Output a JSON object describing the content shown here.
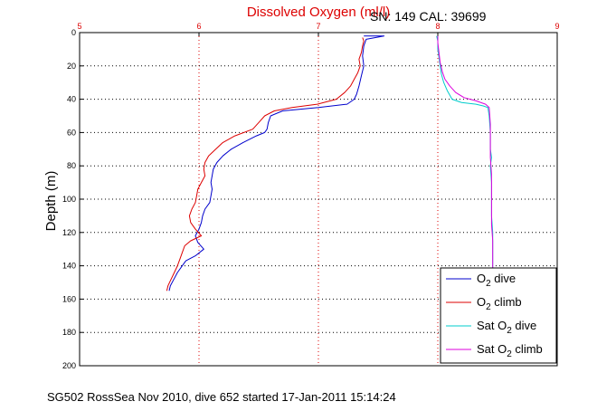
{
  "chart_data": {
    "type": "line",
    "title": "Dissolved Oxygen (ml/l)",
    "subtitle": "SN: 149  CAL: 39699",
    "ylabel": "Depth (m)",
    "footer": "SG502 RossSea Nov 2010, dive 652 started 17-Jan-2011 15:14:24",
    "xlim": [
      5,
      9
    ],
    "ylim": [
      0,
      200
    ],
    "y_inverted": true,
    "x_axis_position": "top",
    "grid": true,
    "xticks": [
      5,
      6,
      7,
      8,
      9
    ],
    "yticks": [
      0,
      20,
      40,
      60,
      80,
      100,
      120,
      140,
      160,
      180,
      200
    ],
    "legend_position": "bottom-right",
    "series": [
      {
        "name": "O2 dive",
        "legend_main": "O",
        "legend_sub": "2",
        "legend_rest": " dive",
        "color": "#0000cc",
        "points": [
          [
            7.38,
            2
          ],
          [
            7.55,
            2
          ],
          [
            7.4,
            4
          ],
          [
            7.38,
            8
          ],
          [
            7.37,
            14
          ],
          [
            7.38,
            20
          ],
          [
            7.36,
            26
          ],
          [
            7.34,
            32
          ],
          [
            7.32,
            37
          ],
          [
            7.3,
            40
          ],
          [
            7.24,
            43
          ],
          [
            7.0,
            45
          ],
          [
            6.7,
            47
          ],
          [
            6.6,
            50
          ],
          [
            6.58,
            54
          ],
          [
            6.57,
            58
          ],
          [
            6.55,
            60
          ],
          [
            6.48,
            62
          ],
          [
            6.37,
            66
          ],
          [
            6.27,
            70
          ],
          [
            6.2,
            74
          ],
          [
            6.15,
            78
          ],
          [
            6.12,
            82
          ],
          [
            6.11,
            86
          ],
          [
            6.1,
            90
          ],
          [
            6.11,
            94
          ],
          [
            6.1,
            98
          ],
          [
            6.09,
            102
          ],
          [
            6.05,
            106
          ],
          [
            6.03,
            110
          ],
          [
            6.02,
            114
          ],
          [
            6.0,
            118
          ],
          [
            5.97,
            122
          ],
          [
            5.99,
            126
          ],
          [
            6.04,
            130
          ],
          [
            5.97,
            134
          ],
          [
            5.89,
            137
          ],
          [
            5.86,
            140
          ],
          [
            5.82,
            144
          ],
          [
            5.79,
            148
          ],
          [
            5.76,
            152
          ],
          [
            5.75,
            155
          ]
        ]
      },
      {
        "name": "O2 climb",
        "legend_main": "O",
        "legend_sub": "2",
        "legend_rest": " climb",
        "color": "#dd0000",
        "points": [
          [
            5.73,
            155
          ],
          [
            5.74,
            152
          ],
          [
            5.76,
            149
          ],
          [
            5.78,
            146
          ],
          [
            5.8,
            143
          ],
          [
            5.82,
            140
          ],
          [
            5.84,
            136
          ],
          [
            5.86,
            132
          ],
          [
            5.88,
            128
          ],
          [
            5.93,
            125
          ],
          [
            6.02,
            122
          ],
          [
            5.97,
            118
          ],
          [
            5.93,
            114
          ],
          [
            5.92,
            110
          ],
          [
            5.94,
            106
          ],
          [
            5.97,
            102
          ],
          [
            5.98,
            98
          ],
          [
            5.99,
            94
          ],
          [
            6.02,
            90
          ],
          [
            6.05,
            86
          ],
          [
            6.04,
            82
          ],
          [
            6.05,
            78
          ],
          [
            6.08,
            74
          ],
          [
            6.14,
            70
          ],
          [
            6.2,
            66
          ],
          [
            6.3,
            62
          ],
          [
            6.45,
            58
          ],
          [
            6.5,
            54
          ],
          [
            6.55,
            50
          ],
          [
            6.63,
            47
          ],
          [
            6.78,
            45
          ],
          [
            6.99,
            43
          ],
          [
            7.15,
            40
          ],
          [
            7.22,
            36
          ],
          [
            7.27,
            32
          ],
          [
            7.3,
            28
          ],
          [
            7.33,
            24
          ],
          [
            7.35,
            20
          ],
          [
            7.34,
            16
          ],
          [
            7.36,
            12
          ],
          [
            7.37,
            8
          ],
          [
            7.38,
            5
          ],
          [
            7.37,
            3
          ]
        ]
      },
      {
        "name": "Sat O2 dive",
        "legend_main": "Sat O",
        "legend_sub": "2",
        "legend_rest": " dive",
        "color": "#00cccc",
        "points": [
          [
            7.99,
            2
          ],
          [
            8.0,
            5
          ],
          [
            8.0,
            10
          ],
          [
            8.01,
            15
          ],
          [
            8.02,
            20
          ],
          [
            8.03,
            25
          ],
          [
            8.05,
            30
          ],
          [
            8.08,
            35
          ],
          [
            8.12,
            40
          ],
          [
            8.2,
            42
          ],
          [
            8.32,
            43
          ],
          [
            8.38,
            44
          ],
          [
            8.42,
            45
          ],
          [
            8.43,
            50
          ],
          [
            8.44,
            60
          ],
          [
            8.44,
            70
          ],
          [
            8.45,
            75
          ],
          [
            8.44,
            80
          ],
          [
            8.45,
            90
          ],
          [
            8.45,
            100
          ],
          [
            8.45,
            110
          ],
          [
            8.46,
            120
          ],
          [
            8.46,
            130
          ],
          [
            8.46,
            140
          ],
          [
            8.46,
            144
          ]
        ]
      },
      {
        "name": "Sat O2 climb",
        "legend_main": "Sat O",
        "legend_sub": "2",
        "legend_rest": " climb",
        "color": "#dd00dd",
        "points": [
          [
            8.46,
            144
          ],
          [
            8.46,
            135
          ],
          [
            8.46,
            125
          ],
          [
            8.45,
            115
          ],
          [
            8.45,
            105
          ],
          [
            8.45,
            95
          ],
          [
            8.45,
            85
          ],
          [
            8.44,
            75
          ],
          [
            8.44,
            65
          ],
          [
            8.44,
            55
          ],
          [
            8.43,
            45
          ],
          [
            8.4,
            43
          ],
          [
            8.32,
            41
          ],
          [
            8.22,
            39
          ],
          [
            8.15,
            36
          ],
          [
            8.1,
            32
          ],
          [
            8.06,
            28
          ],
          [
            8.04,
            24
          ],
          [
            8.02,
            18
          ],
          [
            8.01,
            12
          ],
          [
            8.0,
            6
          ],
          [
            8.0,
            2
          ]
        ]
      }
    ]
  }
}
